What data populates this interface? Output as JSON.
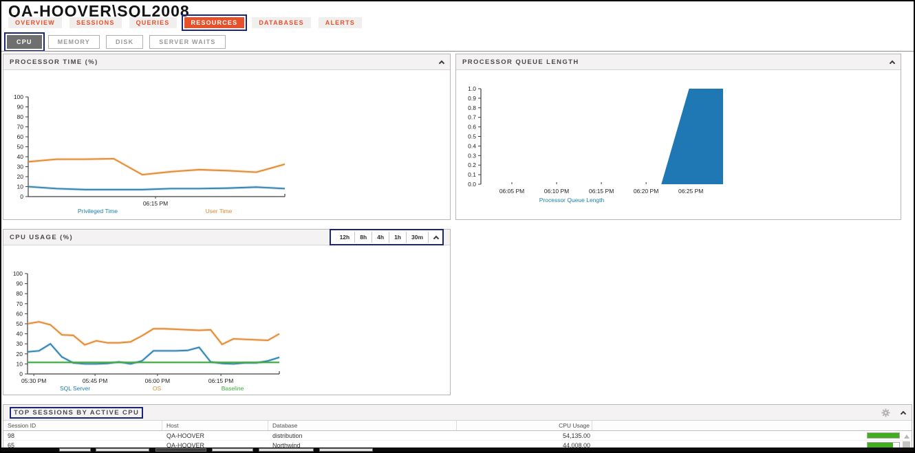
{
  "page": {
    "title": "QA-HOOVER\\SQL2008"
  },
  "tabs": [
    {
      "label": "OVERVIEW",
      "active": false
    },
    {
      "label": "SESSIONS",
      "active": false
    },
    {
      "label": "QUERIES",
      "active": false
    },
    {
      "label": "RESOURCES",
      "active": true
    },
    {
      "label": "DATABASES",
      "active": false
    },
    {
      "label": "ALERTS",
      "active": false
    }
  ],
  "subtabs": [
    {
      "label": "CPU",
      "active": true
    },
    {
      "label": "MEMORY",
      "active": false
    },
    {
      "label": "DISK",
      "active": false
    },
    {
      "label": "SERVER WAITS",
      "active": false
    }
  ],
  "panels": {
    "processor_time": {
      "title": "PROCESSOR TIME (%)"
    },
    "queue_length": {
      "title": "PROCESSOR QUEUE LENGTH"
    },
    "cpu_usage": {
      "title": "CPU USAGE (%)",
      "range_buttons": [
        "12h",
        "8h",
        "4h",
        "1h",
        "30m"
      ]
    },
    "top_sessions": {
      "title": "TOP SESSIONS BY ACTIVE CPU"
    }
  },
  "chart_data": [
    {
      "id": "processor_time",
      "type": "line",
      "title": "Processor Time (%)",
      "ylim": [
        0,
        100
      ],
      "ytick_step": 10,
      "grid": false,
      "x_tick_labels": [
        {
          "pos": 0.496,
          "label": "06:15 PM"
        }
      ],
      "series": [
        {
          "name": "Privileged Time",
          "color": "#2e81ad",
          "values": [
            10,
            8,
            7,
            7,
            7,
            8,
            8,
            8.5,
            9.5,
            8
          ]
        },
        {
          "name": "User Time",
          "color": "#e1892f",
          "values": [
            35,
            37.5,
            37.5,
            38,
            22,
            25,
            27,
            26,
            24.5,
            32.5
          ]
        }
      ],
      "legend": [
        {
          "label": "Privileged Time",
          "color": "#1a7fa6"
        },
        {
          "label": "User Time",
          "color": "#e0892f"
        }
      ],
      "legend_position": "bottom"
    },
    {
      "id": "queue_length",
      "type": "area",
      "title": "Processor Queue Length",
      "ylim": [
        0,
        1.0
      ],
      "ytick_step": 0.1,
      "grid": false,
      "x_domain_minutes": [
        1.54,
        28.6
      ],
      "x_ticks": [
        {
          "min": 5,
          "label": "06:05 PM"
        },
        {
          "min": 10,
          "label": "06:10 PM"
        },
        {
          "min": 15,
          "label": "06:15 PM"
        },
        {
          "min": 20,
          "label": "06:20 PM"
        },
        {
          "min": 25,
          "label": "06:25 PM"
        }
      ],
      "area_points": [
        [
          21.7,
          0
        ],
        [
          24.8,
          1.0
        ],
        [
          28.6,
          1.0
        ],
        [
          28.6,
          0
        ]
      ],
      "fill": "#1f78b4",
      "legend": [
        {
          "label": "Processor Queue Length",
          "color": "#1a7fa6"
        }
      ],
      "legend_position": "bottom"
    },
    {
      "id": "cpu_usage",
      "type": "line",
      "title": "CPU Usage (%)",
      "ylim": [
        0,
        100
      ],
      "ytick_step": 10,
      "grid": false,
      "x_tick_labels": [
        {
          "pos": 0.025,
          "label": "05:30 PM"
        },
        {
          "pos": 0.268,
          "label": "05:45 PM"
        },
        {
          "pos": 0.516,
          "label": "06:00 PM"
        },
        {
          "pos": 0.768,
          "label": "06:15 PM"
        }
      ],
      "series": [
        {
          "name": "SQL Server",
          "color": "#2e81ad",
          "values": [
            22,
            23,
            30,
            17,
            11,
            10,
            10,
            10.5,
            12,
            10,
            13,
            23,
            23,
            23,
            23.5,
            26.5,
            12,
            10.5,
            10,
            11,
            11,
            13,
            16.5
          ]
        },
        {
          "name": "OS",
          "color": "#e1892f",
          "values": [
            50,
            52,
            49,
            39,
            38.5,
            29,
            33,
            31,
            31,
            32,
            38,
            45,
            45,
            44.5,
            44,
            43.5,
            44,
            29.5,
            35,
            34.5,
            34,
            33.5,
            40
          ]
        },
        {
          "name": "Baseline",
          "color": "#44a944",
          "values": [
            11.5,
            11.5,
            11.5,
            11.5,
            11.5,
            11.5,
            11.5,
            11.5,
            11.5,
            11.5,
            11.5,
            11.5,
            11.5,
            11.5,
            11.5,
            11.5,
            11.5,
            11.5,
            11.5,
            11.5,
            11.5,
            11.5,
            11.5
          ]
        }
      ],
      "legend": [
        {
          "label": "SQL Server",
          "color": "#1a7fa6"
        },
        {
          "label": "OS",
          "color": "#e0892f"
        },
        {
          "label": "Baseline",
          "color": "#3fa73f"
        }
      ],
      "legend_position": "bottom"
    }
  ],
  "table": {
    "columns": [
      "Session ID",
      "Host",
      "Database",
      "CPU Usage"
    ],
    "rows": [
      {
        "session_id": "98",
        "host": "QA-HOOVER",
        "database": "distribution",
        "cpu_usage": "54,135.00",
        "bar_pct": 100
      },
      {
        "session_id": "65",
        "host": "QA-HOOVER",
        "database": "Northwind",
        "cpu_usage": "44,008.00",
        "bar_pct": 80
      }
    ]
  },
  "colors": {
    "accent": "#e8502a",
    "annotation_border": "#1b2577",
    "series_blue": "#2e81ad",
    "series_orange": "#e1892f",
    "series_green": "#44a944",
    "area_blue": "#1f78b4",
    "bar_green": "#43ad21"
  }
}
